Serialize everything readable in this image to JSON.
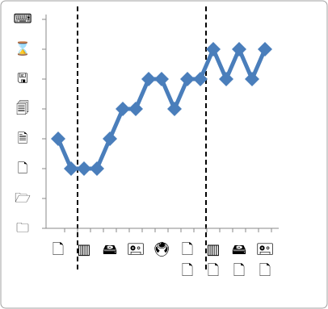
{
  "chart_data": {
    "type": "line",
    "categories": [
      "🗋",
      null,
      "▥",
      null,
      "🖴",
      null,
      "🖭",
      null,
      "🖲",
      null,
      "🗋\n🗋",
      null,
      "▥\n🗋",
      null,
      "🖴\n🗋",
      null,
      "🖭\n🗋"
    ],
    "series": [
      {
        "color": "#4a7ebb",
        "values": [
          3,
          2,
          2,
          2,
          3,
          4,
          4,
          5,
          5,
          4,
          5,
          5,
          6,
          5,
          6,
          5,
          6
        ]
      }
    ],
    "ylim": [
      0,
      7
    ],
    "yticks": [
      {
        "value": 0,
        "label": "🗀"
      },
      {
        "value": 1,
        "label": "🗁"
      },
      {
        "value": 2,
        "label": "🗋"
      },
      {
        "value": 3,
        "label": "🗎"
      },
      {
        "value": 4,
        "label": "🗐"
      },
      {
        "value": 5,
        "label": "🖫"
      },
      {
        "value": 6,
        "label": "⌛"
      },
      {
        "value": 7,
        "label": "⌨"
      }
    ]
  }
}
